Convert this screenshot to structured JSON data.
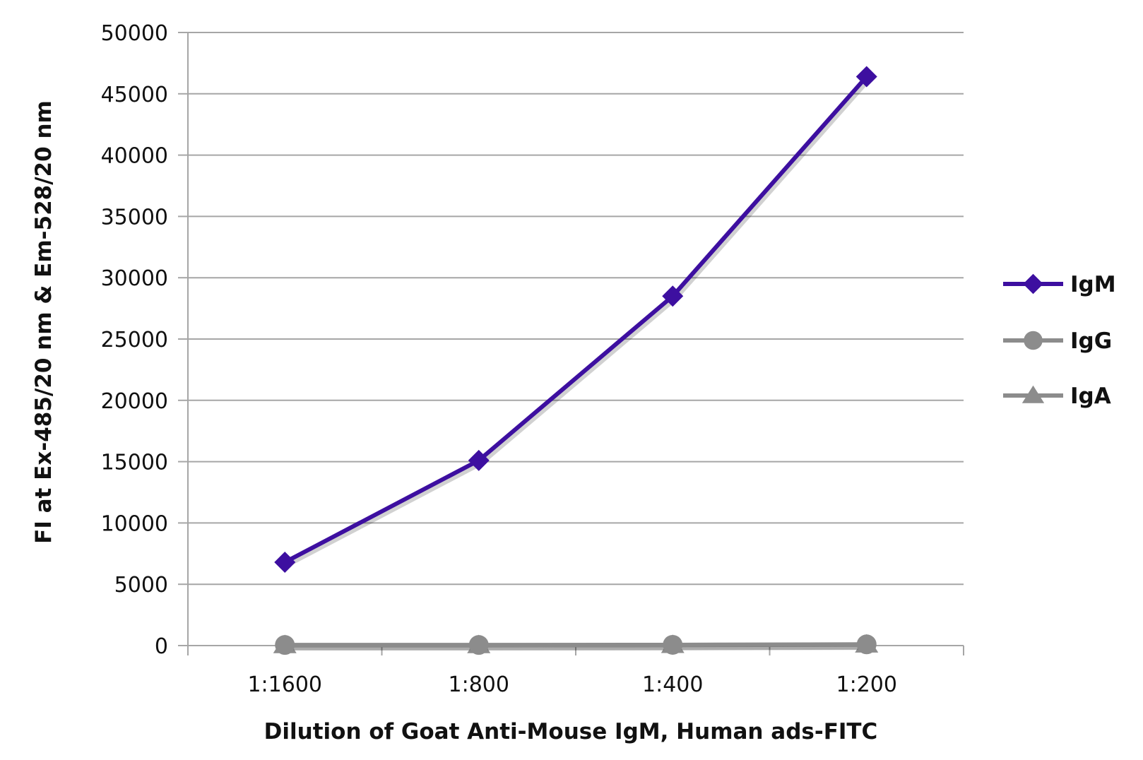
{
  "chart_data": {
    "type": "line",
    "title": "",
    "xlabel": "Dilution of Goat Anti-Mouse IgM, Human ads-FITC",
    "ylabel": "FI at Ex-485/20 nm & Em-528/20 nm",
    "categories": [
      "1:1600",
      "1:800",
      "1:400",
      "1:200"
    ],
    "ylim": [
      0,
      50000
    ],
    "yticks": [
      0,
      5000,
      10000,
      15000,
      20000,
      25000,
      30000,
      35000,
      40000,
      45000,
      50000
    ],
    "grid": "horizontal",
    "legend_position": "right",
    "series": [
      {
        "name": "IgM",
        "values": [
          6800,
          15100,
          28500,
          46400
        ],
        "color": "#3d0fa0",
        "marker": "diamond"
      },
      {
        "name": "IgG",
        "values": [
          50,
          50,
          60,
          100
        ],
        "color": "#8c8c8c",
        "marker": "circle"
      },
      {
        "name": "IgA",
        "values": [
          30,
          30,
          40,
          80
        ],
        "color": "#8c8c8c",
        "marker": "triangle"
      }
    ]
  }
}
